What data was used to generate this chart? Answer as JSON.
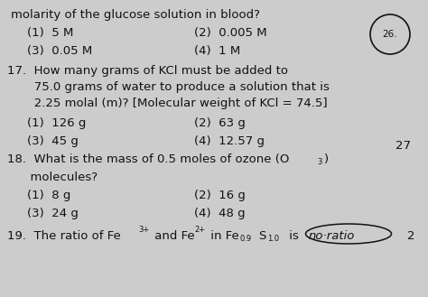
{
  "bg_color": "#cccccc",
  "text_color": "#111111",
  "title_partial": "molarity of the glucose solution in blood?",
  "q16_opts": [
    "(1)  5 M",
    "(2)  0.005 M",
    "(3)  0.05 M",
    "(4)  1 M"
  ],
  "q17_lines": [
    "17.  How many grams of KCl must be added to",
    "       75.0 grams of water to produce a solution that is",
    "       2.25 molal (m)? [Molecular weight of KCl = 74.5]"
  ],
  "q17_opts": [
    "(1)  126 g",
    "(2)  63 g",
    "(3)  45 g",
    "(4)  12.57 g"
  ],
  "q18_line1a": "18.  What is the mass of 0.5 moles of ozone (O",
  "q18_sub3": "3",
  "q18_line1b": ")",
  "q18_line2": "      molecules?",
  "q18_opts": [
    "(1)  8 g",
    "(2)  16 g",
    "(3)  24 g",
    "(4)  48 g"
  ],
  "q19_prefix": "19.  The ratio of Fe",
  "q19_sup3p": "3+",
  "q19_mid1": " and Fe",
  "q19_sup2p": "2+",
  "q19_mid2": " in Fe",
  "q19_sub09": "0.9",
  "q19_S": "S",
  "q19_sub10": "1.0",
  "q19_suffix": " is",
  "q19_answer": "no·ratio",
  "circle_label": "26.",
  "num27": "27",
  "num2x": "2"
}
